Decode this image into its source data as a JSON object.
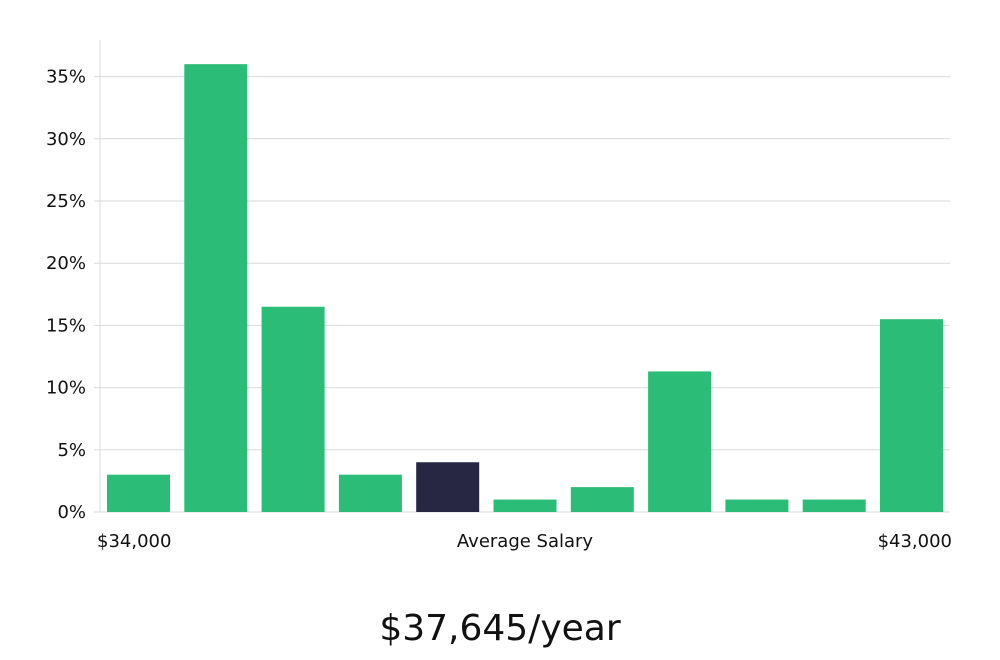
{
  "chart_data": {
    "type": "bar",
    "values": [
      3,
      36,
      16.5,
      3,
      4,
      1,
      2,
      11.3,
      1,
      1,
      15.5
    ],
    "highlight_index": 4,
    "bar_color": "#2bbd77",
    "highlight_color": "#272643",
    "ylim": [
      0,
      37.5
    ],
    "yticks": [
      0,
      5,
      10,
      15,
      20,
      25,
      30,
      35
    ],
    "ytick_labels": [
      "0%",
      "5%",
      "10%",
      "15%",
      "20%",
      "25%",
      "30%",
      "35%"
    ],
    "xlabel": "Average Salary",
    "x_min_label": "$34,000",
    "x_max_label": "$43,000",
    "grid": true
  },
  "summary": {
    "average_salary": "$37,645/year"
  }
}
